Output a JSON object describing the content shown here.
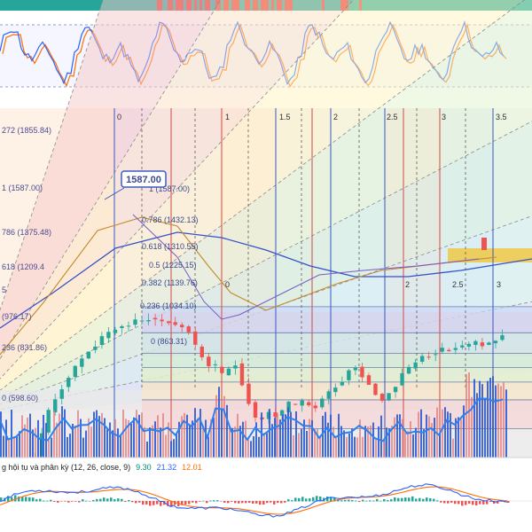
{
  "chart_data": {
    "type": "candlestick",
    "price_ylim": [
      560,
      2000
    ],
    "price_series": [
      470,
      490,
      530,
      560,
      590,
      620,
      700,
      840,
      960,
      1040,
      1110,
      1170,
      1230,
      1280,
      1330,
      1360,
      1400,
      1430,
      1460,
      1470,
      1480,
      1500,
      1500,
      1520,
      1510,
      1500,
      1495,
      1480,
      1470,
      1440,
      1350,
      1290,
      1240,
      1230,
      1180,
      1220,
      1250,
      1130,
      1020,
      930,
      920,
      960,
      940,
      960,
      1010,
      1000,
      1020,
      1000,
      990,
      1040,
      1080,
      1120,
      1150,
      1210,
      1230,
      1180,
      1130,
      1070,
      1030,
      1080,
      1120,
      1190,
      1220,
      1260,
      1290,
      1300,
      1320,
      1330,
      1330,
      1345,
      1350,
      1360,
      1375,
      1360,
      1370,
      1390,
      1410
    ],
    "levels": [
      {
        "label": "272 (1855.84)",
        "value": 1855.84
      },
      {
        "label": "1 (1587.00)",
        "value": 1587.0
      },
      {
        "label": "786 (1375.48)",
        "value": 1375.48
      },
      {
        "label": "618 (1209.4",
        "value": 1209.4
      },
      {
        "label": "5",
        "value": 1116.0
      },
      {
        "label": "(976.17)",
        "value": 976.17
      },
      {
        "label": "236 (831.86)",
        "value": 831.86
      },
      {
        "label": "0 (598.60)",
        "value": 598.6
      }
    ],
    "retracement_levels": [
      {
        "label": "0.786 (1432.13)",
        "value": 1432.13
      },
      {
        "label": "0.618 (1310.55)",
        "value": 1310.55
      },
      {
        "label": "0.5 (1225.15)",
        "value": 1225.15
      },
      {
        "label": "0.382 (1139.76)",
        "value": 1139.76
      },
      {
        "label": "0.236 (1034.10)",
        "value": 1034.1
      },
      {
        "label": "0 (863.31)",
        "value": 863.31
      }
    ],
    "retracement_top_label": "1 (1587.00)",
    "time_zones": [
      "0",
      "1",
      "1.5",
      "2",
      "2.5",
      "3",
      "3.5"
    ],
    "time_zones_inner": [
      "0",
      "2",
      "2.5",
      "3"
    ],
    "price_callout": "1587.00",
    "macd": {
      "title": "g hội tụ và phân kỳ (12, 26, close, 9)",
      "values": [
        "9.30",
        "21.32",
        "12.01"
      ],
      "colors": [
        "#00897b",
        "#2962ff",
        "#ff6d00"
      ]
    }
  },
  "colors": {
    "up_candle": "#26a69a",
    "down_candle": "#ef5350",
    "macd_line": "#2962ff",
    "signal_line": "#ff6d00",
    "volume_avg": "#2f80ed",
    "callout": "#3b5cc4"
  }
}
